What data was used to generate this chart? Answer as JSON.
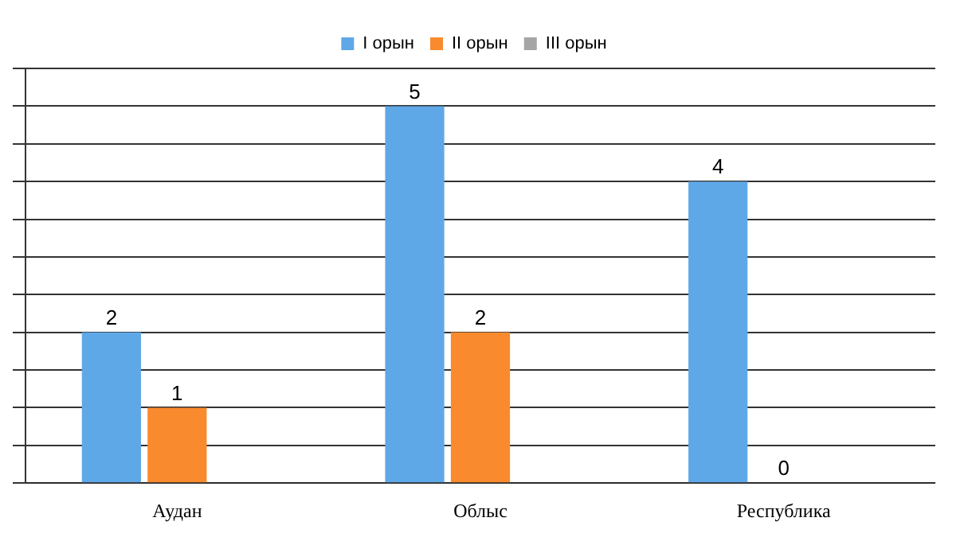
{
  "chart_data": {
    "type": "bar",
    "categories": [
      "Аудан",
      "Облыс",
      "Республика"
    ],
    "series": [
      {
        "name": "I орын",
        "color": "#5fa8e8",
        "values": [
          2,
          5,
          4
        ]
      },
      {
        "name": "II орын",
        "color": "#f98a2e",
        "values": [
          1,
          2,
          0
        ]
      },
      {
        "name": "III орын",
        "color": "#a5a5a5",
        "values": [
          null,
          null,
          null
        ]
      }
    ],
    "ylim": [
      0,
      5.5
    ],
    "yticks": [
      {
        "value": 0,
        "label": null
      },
      {
        "value": 0.5,
        "label": null
      },
      {
        "value": 1,
        "label": null
      },
      {
        "value": 1.5,
        "label": null
      },
      {
        "value": 2,
        "label": null
      },
      {
        "value": 2.5,
        "label": null
      },
      {
        "value": 3,
        "label": null
      },
      {
        "value": 3.5,
        "label": null
      },
      {
        "value": 4,
        "label": null
      },
      {
        "value": 4.5,
        "label": null
      },
      {
        "value": 5,
        "label": null
      },
      {
        "value": 5.5,
        "label": null
      }
    ],
    "tick_labels": "x",
    "grid": "y",
    "legend": "top",
    "data_labels": true
  }
}
